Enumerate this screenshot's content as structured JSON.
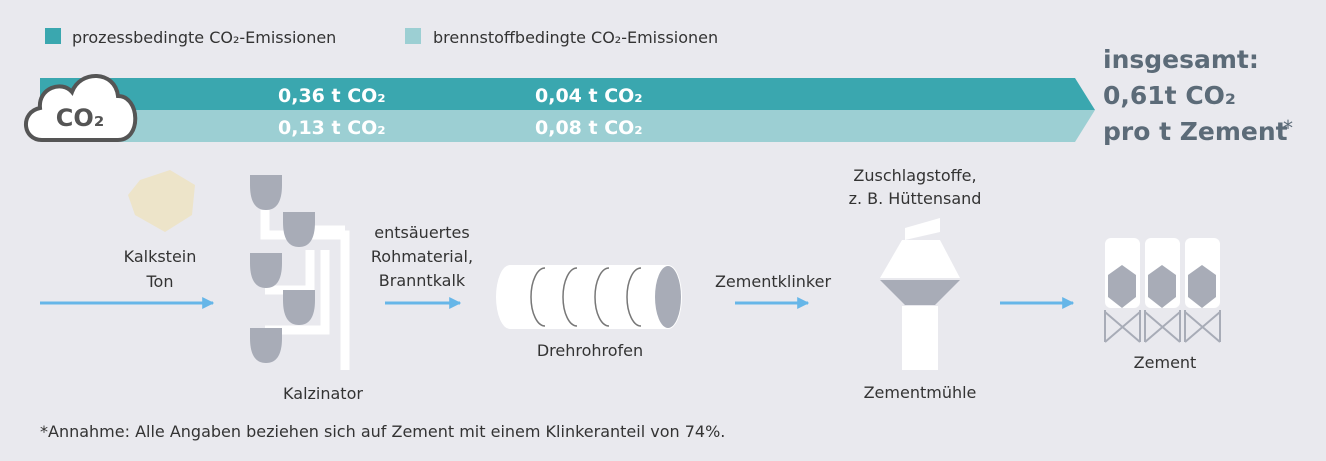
{
  "legend": {
    "items": [
      {
        "label": "prozessbedingte CO₂-Emissionen"
      },
      {
        "label": "brennstoffbedingte CO₂-Emissionen"
      }
    ]
  },
  "cloud": {
    "label": "CO₂"
  },
  "emissions": {
    "process": [
      "0,36 t CO₂",
      "0,04 t CO₂"
    ],
    "fuel": [
      "0,13 t CO₂",
      "0,08 t CO₂"
    ]
  },
  "total": {
    "line1": "insgesamt:",
    "line2": "0,61t CO₂",
    "line3": "pro t Zement",
    "mark": "*"
  },
  "steps": {
    "input": [
      "Kalkstein",
      "Ton"
    ],
    "calciner": "Kalzinator",
    "intermediate": [
      "entsäuertes",
      "Rohmaterial,",
      "Branntkalk"
    ],
    "kiln": "Drehrohrofen",
    "clinker": "Zementklinker",
    "additives": [
      "Zuschlagstoffe,",
      "z. B. Hüttensand"
    ],
    "mill": "Zementmühle",
    "product": "Zement"
  },
  "footnote": "*Annahme: Alle Angaben beziehen sich auf Zement mit einem Klinkeranteil von 74%."
}
